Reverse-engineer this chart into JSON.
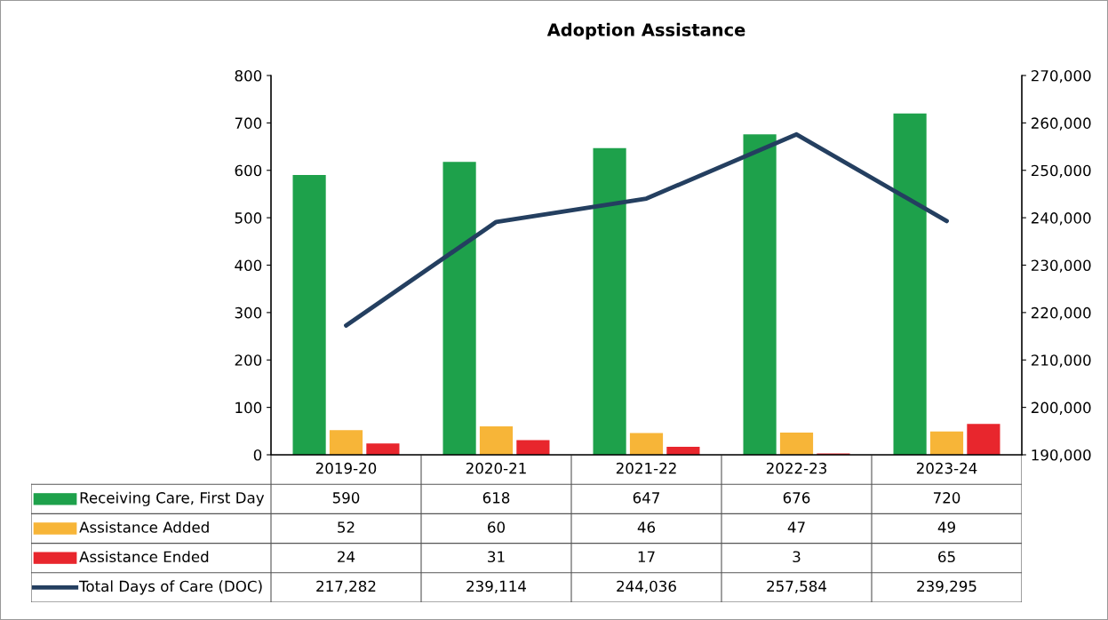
{
  "chart_data": {
    "type": "bar",
    "title": "Adoption Assistance",
    "categories": [
      "2019-20",
      "2020-21",
      "2021-22",
      "2022-23",
      "2023-24"
    ],
    "series": [
      {
        "name": "Receiving Care, First Day",
        "color": "#1ea14b",
        "values": [
          590,
          618,
          647,
          676,
          720
        ],
        "value_labels": [
          "590",
          "618",
          "647",
          "676",
          "720"
        ]
      },
      {
        "name": "Assistance Added",
        "color": "#f7b538",
        "values": [
          52,
          60,
          46,
          47,
          49
        ],
        "value_labels": [
          "52",
          "60",
          "46",
          "47",
          "49"
        ]
      },
      {
        "name": "Assistance Ended",
        "color": "#e8262d",
        "values": [
          24,
          31,
          17,
          3,
          65
        ],
        "value_labels": [
          "24",
          "31",
          "17",
          "3",
          "65"
        ]
      },
      {
        "name": "Total Days of Care (DOC)",
        "type": "line",
        "axis": "y2",
        "color": "#243f60",
        "values": [
          217282,
          239114,
          244036,
          257584,
          239295
        ],
        "value_labels": [
          "217,282",
          "239,114",
          "244,036",
          "257,584",
          "239,295"
        ]
      }
    ],
    "ylim": [
      0,
      800
    ],
    "yticks": [
      0,
      100,
      200,
      300,
      400,
      500,
      600,
      700,
      800
    ],
    "y2lim": [
      190000,
      270000
    ],
    "y2ticks": [
      {
        "value": 190000,
        "label": "190,000"
      },
      {
        "value": 200000,
        "label": "200,000"
      },
      {
        "value": 210000,
        "label": "210,000"
      },
      {
        "value": 220000,
        "label": "220,000"
      },
      {
        "value": 230000,
        "label": "230,000"
      },
      {
        "value": 240000,
        "label": "240,000"
      },
      {
        "value": 250000,
        "label": "250,000"
      },
      {
        "value": 260000,
        "label": "260,000"
      },
      {
        "value": 270000,
        "label": "270,000"
      }
    ],
    "legend": "bottom left",
    "grid": false
  }
}
